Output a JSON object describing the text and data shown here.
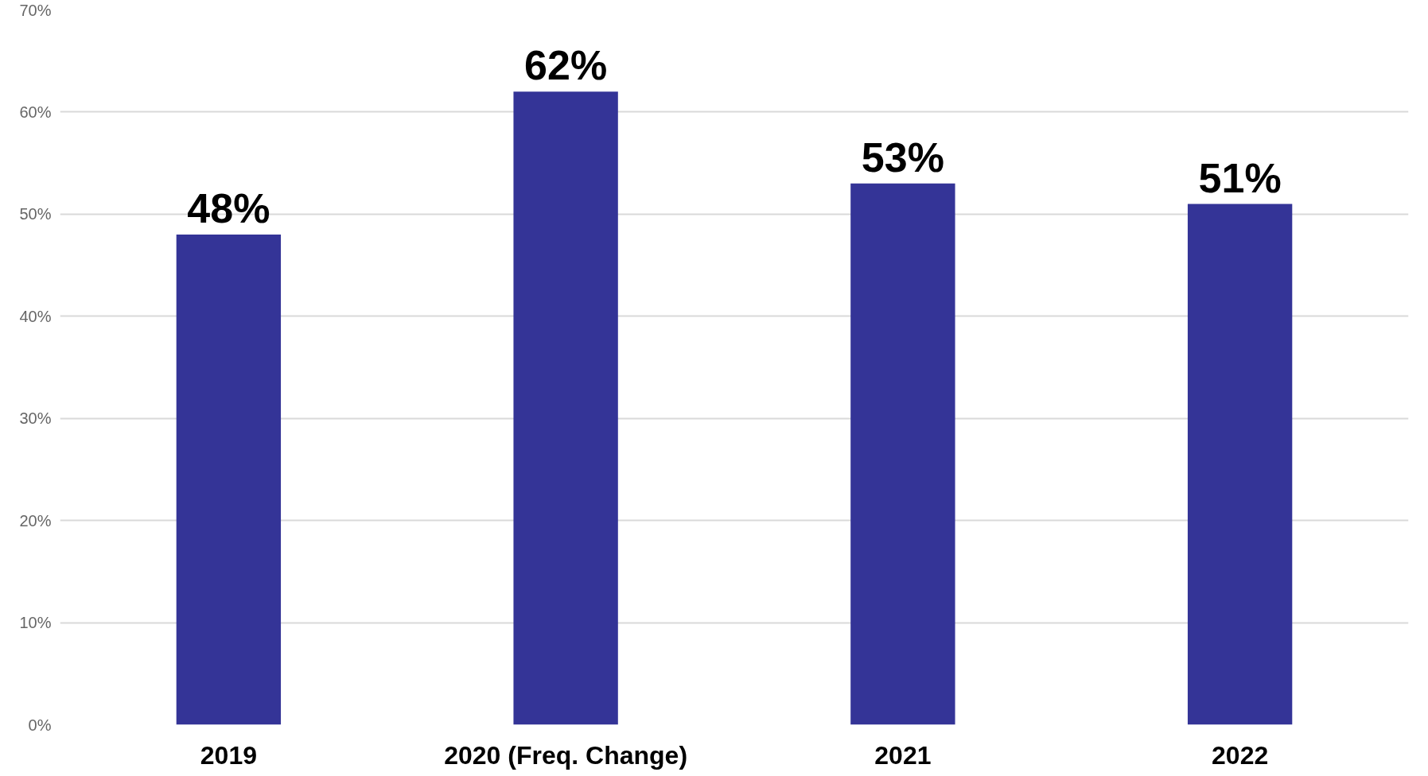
{
  "chart_data": {
    "type": "bar",
    "categories": [
      "2019",
      "2020 (Freq. Change)",
      "2021",
      "2022"
    ],
    "values": [
      48,
      62,
      53,
      51
    ],
    "value_labels": [
      "48%",
      "62%",
      "53%",
      "51%"
    ],
    "color": "#343497",
    "ylim": [
      0,
      70
    ],
    "yticks": [
      {
        "value": 0,
        "label": "0%"
      },
      {
        "value": 10,
        "label": "10%"
      },
      {
        "value": 20,
        "label": "20%"
      },
      {
        "value": 30,
        "label": "30%"
      },
      {
        "value": 40,
        "label": "40%"
      },
      {
        "value": 50,
        "label": "50%"
      },
      {
        "value": 60,
        "label": "60%"
      },
      {
        "value": 70,
        "label": "70%"
      }
    ],
    "grid": "y"
  }
}
